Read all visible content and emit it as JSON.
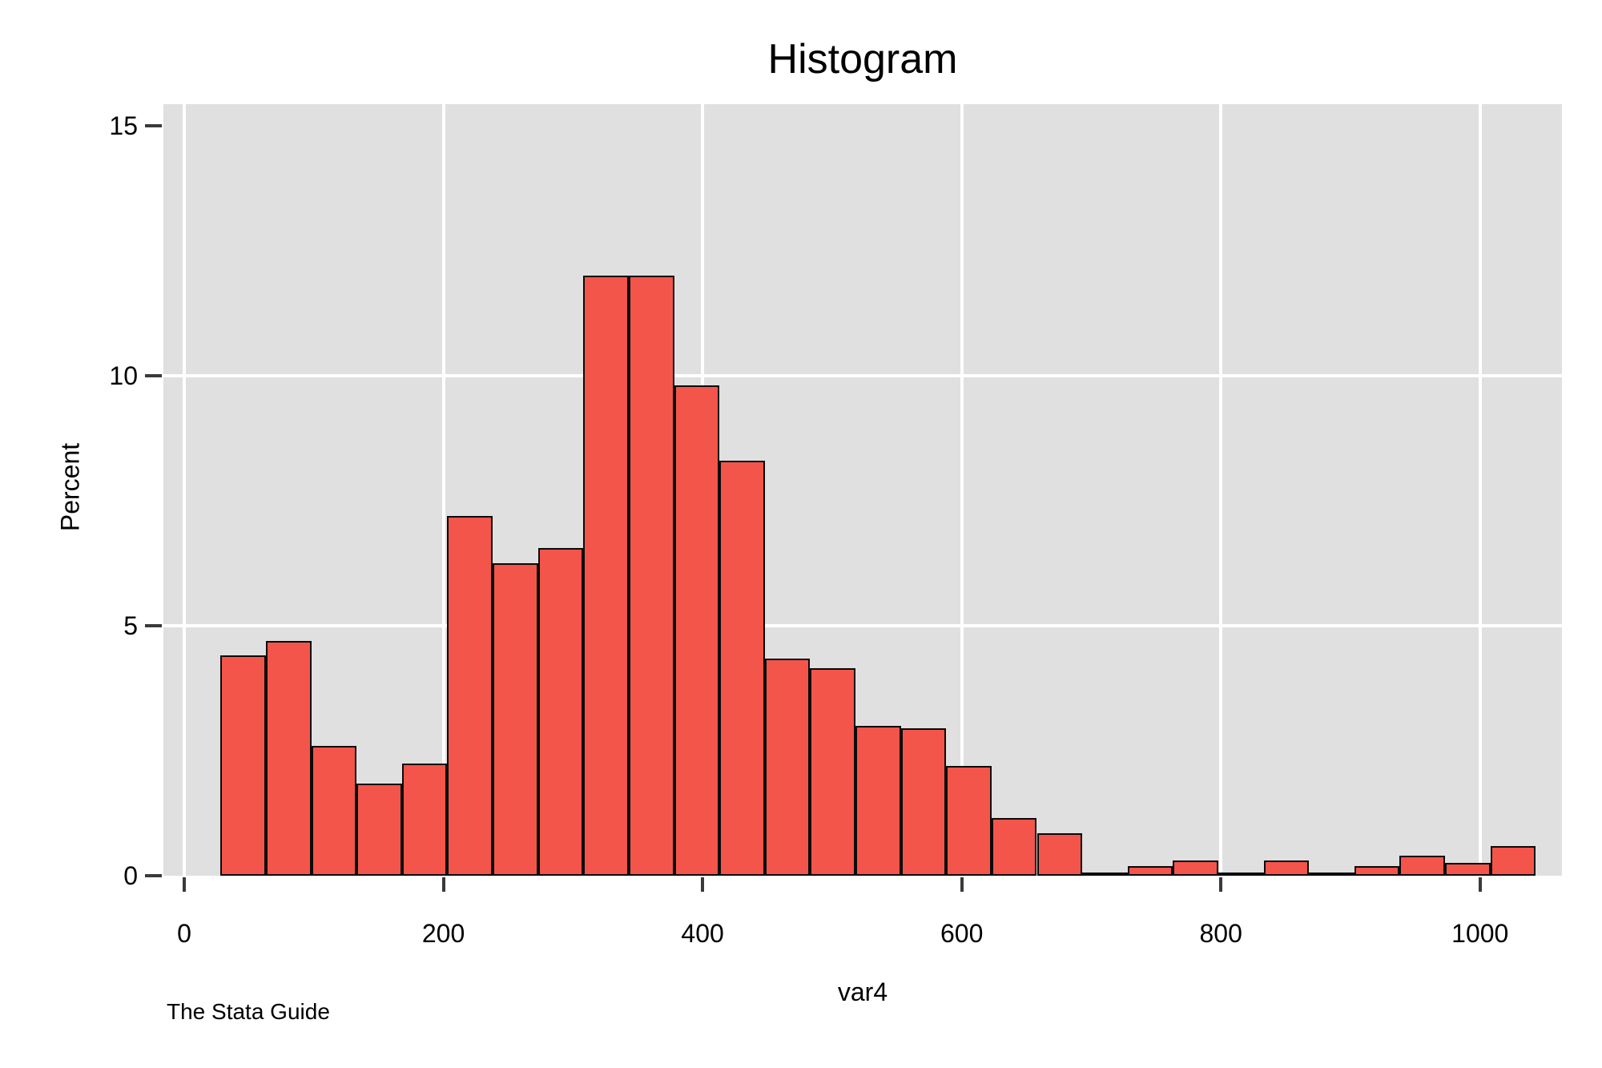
{
  "title": "Histogram",
  "caption": "The Stata Guide",
  "colors": {
    "bar_fill": "#f4554a",
    "bar_outline": "#0a0a0a",
    "plot_background": "#e0e0e0",
    "gridline": "#ffffff",
    "tick": "#3a3a3a",
    "text": "#000000",
    "figure_background": "#ffffff"
  },
  "chart_data": {
    "type": "bar",
    "subtype": "histogram",
    "title": "Histogram",
    "xlabel": "var4",
    "ylabel": "Percent",
    "bin_start": 28,
    "bin_width": 35,
    "bins_percent": [
      4.4,
      4.7,
      2.6,
      1.85,
      2.25,
      7.2,
      6.25,
      6.55,
      12.0,
      12.0,
      9.8,
      8.3,
      4.35,
      4.15,
      3.0,
      2.95,
      2.2,
      1.15,
      0.85,
      0.07,
      0.2,
      0.3,
      0.07,
      0.3,
      0.07,
      0.2,
      0.4,
      0.25,
      0.6
    ],
    "x_ticks": [
      0,
      200,
      400,
      600,
      800,
      1000
    ],
    "y_ticks": [
      0,
      5,
      10,
      15
    ],
    "y_gridlines": [
      5,
      10
    ],
    "x_gridlines": [
      0,
      200,
      400,
      600,
      800,
      1000
    ],
    "xlim": [
      -16.1,
      1063.2
    ],
    "ylim": [
      0,
      15.43
    ],
    "grid": true,
    "legend": "none"
  }
}
